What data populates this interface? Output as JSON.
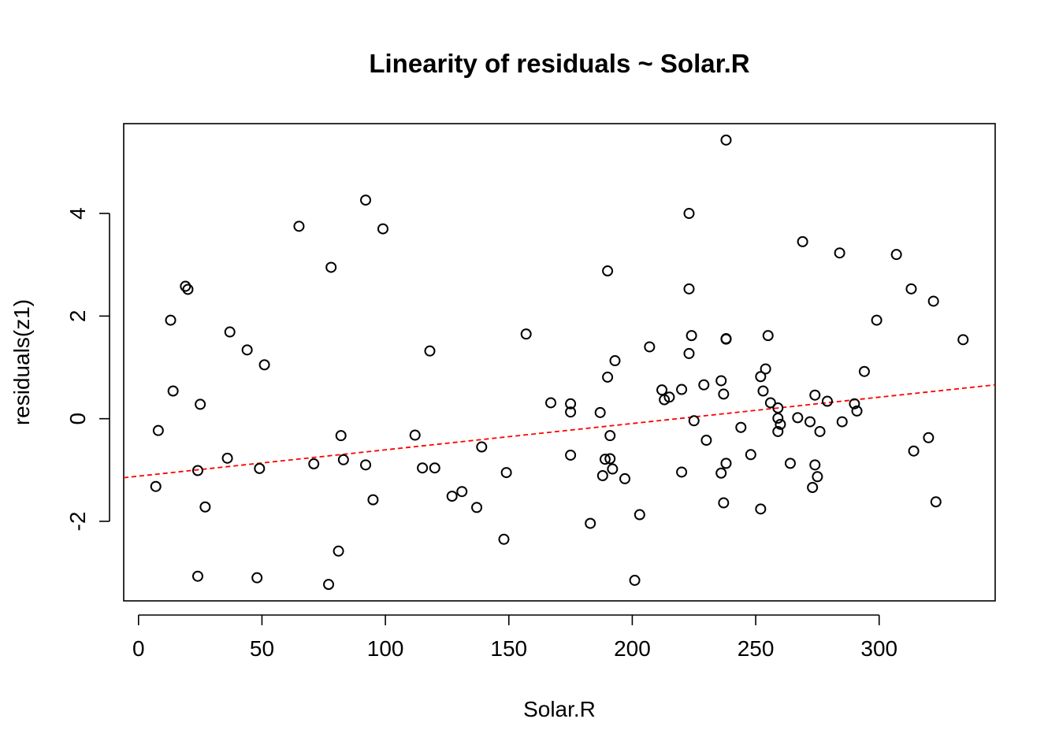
{
  "chart_data": {
    "type": "scatter",
    "title": "Linearity of residuals ~ Solar.R",
    "xlabel": "Solar.R",
    "ylabel": "residuals(z1)",
    "xlim": [
      -6,
      347
    ],
    "ylim": [
      -3.55,
      5.75
    ],
    "x_ticks": [
      0,
      50,
      100,
      150,
      200,
      250,
      300
    ],
    "y_ticks": [
      -2,
      0,
      2,
      4
    ],
    "grid": false,
    "point_style": "open-circle",
    "trend_line": {
      "style": "dashed",
      "color": "#ff0000",
      "x": [
        -6,
        347
      ],
      "y": [
        -1.15,
        0.66
      ]
    },
    "points": [
      {
        "x": 7,
        "y": -1.32
      },
      {
        "x": 8,
        "y": -0.23
      },
      {
        "x": 13,
        "y": 1.92
      },
      {
        "x": 14,
        "y": 0.54
      },
      {
        "x": 19,
        "y": 2.58
      },
      {
        "x": 20,
        "y": 2.52
      },
      {
        "x": 24,
        "y": -1.01
      },
      {
        "x": 24,
        "y": -3.07
      },
      {
        "x": 25,
        "y": 0.28
      },
      {
        "x": 27,
        "y": -1.72
      },
      {
        "x": 36,
        "y": -0.77
      },
      {
        "x": 37,
        "y": 1.69
      },
      {
        "x": 44,
        "y": 1.34
      },
      {
        "x": 48,
        "y": -3.1
      },
      {
        "x": 49,
        "y": -0.97
      },
      {
        "x": 51,
        "y": 1.05
      },
      {
        "x": 65,
        "y": 3.75
      },
      {
        "x": 71,
        "y": -0.88
      },
      {
        "x": 77,
        "y": -3.23
      },
      {
        "x": 78,
        "y": 2.95
      },
      {
        "x": 81,
        "y": -2.58
      },
      {
        "x": 82,
        "y": -0.33
      },
      {
        "x": 83,
        "y": -0.8
      },
      {
        "x": 92,
        "y": 4.26
      },
      {
        "x": 92,
        "y": -0.9
      },
      {
        "x": 95,
        "y": -1.58
      },
      {
        "x": 99,
        "y": 3.7
      },
      {
        "x": 112,
        "y": -0.32
      },
      {
        "x": 115,
        "y": -0.96
      },
      {
        "x": 118,
        "y": 1.32
      },
      {
        "x": 120,
        "y": -0.96
      },
      {
        "x": 127,
        "y": -1.51
      },
      {
        "x": 131,
        "y": -1.42
      },
      {
        "x": 137,
        "y": -1.73
      },
      {
        "x": 139,
        "y": -0.55
      },
      {
        "x": 148,
        "y": -2.35
      },
      {
        "x": 149,
        "y": -1.05
      },
      {
        "x": 157,
        "y": 1.65
      },
      {
        "x": 167,
        "y": 0.31
      },
      {
        "x": 175,
        "y": 0.29
      },
      {
        "x": 175,
        "y": 0.13
      },
      {
        "x": 175,
        "y": -0.71
      },
      {
        "x": 183,
        "y": -2.04
      },
      {
        "x": 187,
        "y": 0.12
      },
      {
        "x": 188,
        "y": -1.11
      },
      {
        "x": 189,
        "y": -0.79
      },
      {
        "x": 190,
        "y": 2.88
      },
      {
        "x": 190,
        "y": 0.81
      },
      {
        "x": 191,
        "y": -0.78
      },
      {
        "x": 191,
        "y": -0.33
      },
      {
        "x": 192,
        "y": -0.98
      },
      {
        "x": 193,
        "y": 1.13
      },
      {
        "x": 197,
        "y": -1.17
      },
      {
        "x": 201,
        "y": -3.15
      },
      {
        "x": 203,
        "y": -1.87
      },
      {
        "x": 207,
        "y": 1.4
      },
      {
        "x": 212,
        "y": 0.56
      },
      {
        "x": 213,
        "y": 0.37
      },
      {
        "x": 215,
        "y": 0.42
      },
      {
        "x": 220,
        "y": 0.57
      },
      {
        "x": 220,
        "y": -1.04
      },
      {
        "x": 223,
        "y": 4.0
      },
      {
        "x": 223,
        "y": 2.53
      },
      {
        "x": 223,
        "y": 1.27
      },
      {
        "x": 224,
        "y": 1.62
      },
      {
        "x": 225,
        "y": -0.04
      },
      {
        "x": 229,
        "y": 0.66
      },
      {
        "x": 230,
        "y": -0.42
      },
      {
        "x": 236,
        "y": 0.74
      },
      {
        "x": 236,
        "y": -1.06
      },
      {
        "x": 237,
        "y": 0.48
      },
      {
        "x": 237,
        "y": -1.64
      },
      {
        "x": 238,
        "y": 5.43
      },
      {
        "x": 238,
        "y": 1.55
      },
      {
        "x": 238,
        "y": 1.56
      },
      {
        "x": 238,
        "y": -0.87
      },
      {
        "x": 244,
        "y": -0.17
      },
      {
        "x": 248,
        "y": -0.7
      },
      {
        "x": 252,
        "y": 0.82
      },
      {
        "x": 252,
        "y": -1.76
      },
      {
        "x": 253,
        "y": 0.54
      },
      {
        "x": 254,
        "y": 0.97
      },
      {
        "x": 255,
        "y": 1.62
      },
      {
        "x": 256,
        "y": 0.31
      },
      {
        "x": 259,
        "y": 0.21
      },
      {
        "x": 259,
        "y": 0.01
      },
      {
        "x": 259,
        "y": -0.25
      },
      {
        "x": 260,
        "y": -0.11
      },
      {
        "x": 264,
        "y": -0.87
      },
      {
        "x": 267,
        "y": 0.02
      },
      {
        "x": 269,
        "y": 3.45
      },
      {
        "x": 272,
        "y": -0.06
      },
      {
        "x": 273,
        "y": -1.34
      },
      {
        "x": 274,
        "y": 0.46
      },
      {
        "x": 274,
        "y": -0.9
      },
      {
        "x": 275,
        "y": -1.13
      },
      {
        "x": 276,
        "y": -0.25
      },
      {
        "x": 279,
        "y": 0.34
      },
      {
        "x": 284,
        "y": 3.23
      },
      {
        "x": 285,
        "y": -0.06
      },
      {
        "x": 290,
        "y": 0.29
      },
      {
        "x": 291,
        "y": 0.15
      },
      {
        "x": 294,
        "y": 0.92
      },
      {
        "x": 299,
        "y": 1.92
      },
      {
        "x": 307,
        "y": 3.2
      },
      {
        "x": 313,
        "y": 2.53
      },
      {
        "x": 314,
        "y": -0.63
      },
      {
        "x": 320,
        "y": -0.37
      },
      {
        "x": 322,
        "y": 2.29
      },
      {
        "x": 323,
        "y": -1.62
      },
      {
        "x": 334,
        "y": 1.54
      }
    ]
  }
}
